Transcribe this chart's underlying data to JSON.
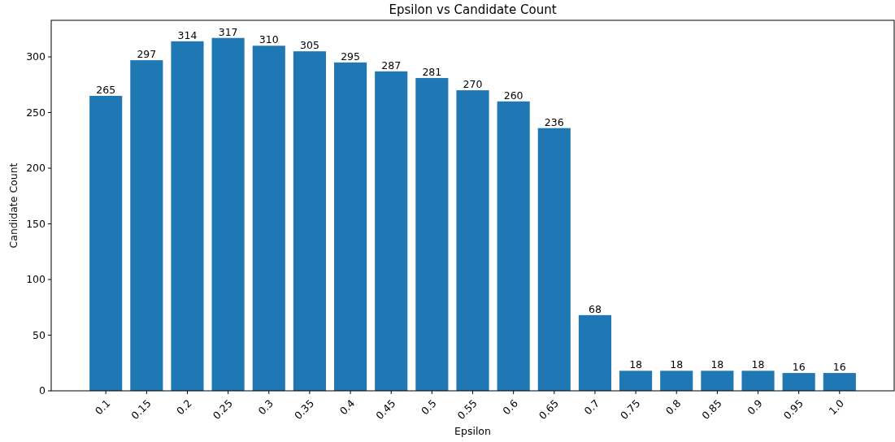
{
  "chart_data": {
    "type": "bar",
    "title": "Epsilon vs Candidate Count",
    "xlabel": "Epsilon",
    "ylabel": "Candidate Count",
    "categories": [
      "0.1",
      "0.15",
      "0.2",
      "0.25",
      "0.3",
      "0.35",
      "0.4",
      "0.45",
      "0.5",
      "0.55",
      "0.6",
      "0.65",
      "0.7",
      "0.75",
      "0.8",
      "0.85",
      "0.9",
      "0.95",
      "1.0"
    ],
    "values": [
      265,
      297,
      314,
      317,
      310,
      305,
      295,
      287,
      281,
      270,
      260,
      236,
      68,
      18,
      18,
      18,
      18,
      16,
      16
    ],
    "color": "#1f77b4",
    "ylim": [
      0,
      332.85
    ],
    "yticks": [
      0,
      50,
      100,
      150,
      200,
      250,
      300
    ],
    "data_labels": true,
    "grid": false
  }
}
